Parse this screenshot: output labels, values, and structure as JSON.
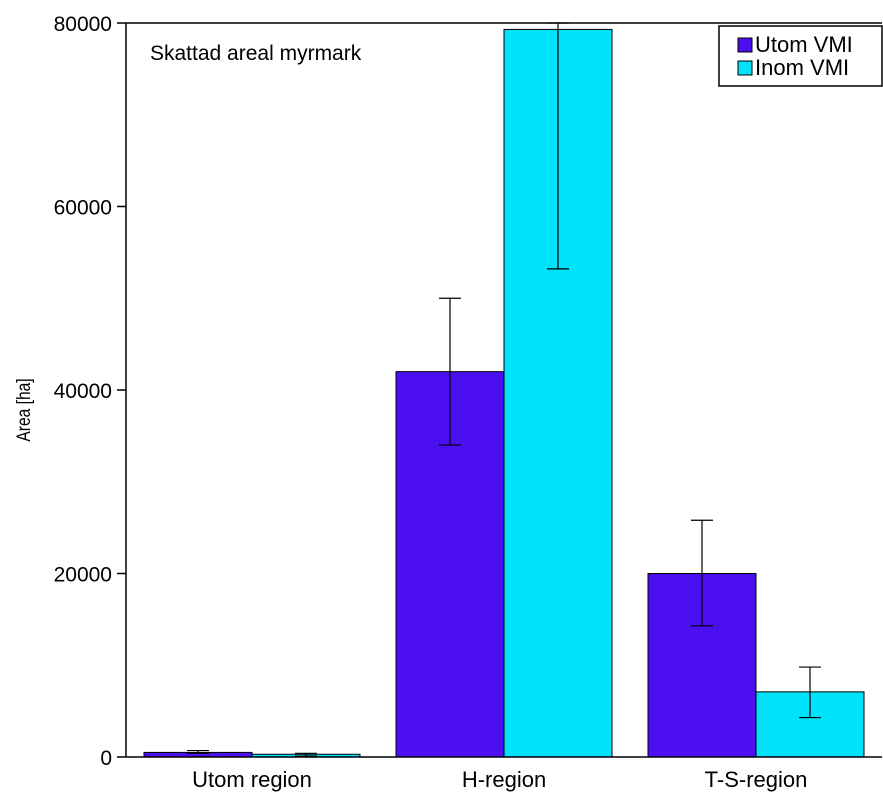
{
  "chart_data": {
    "type": "bar",
    "categories": [
      "Utom region",
      "H-region",
      "T-S-region"
    ],
    "series": [
      {
        "name": "Utom VMI",
        "color": "#4b0ff0",
        "values": [
          500,
          42000,
          20000
        ],
        "error_low": [
          400,
          34000,
          14300
        ],
        "error_high": [
          700,
          50000,
          25800
        ]
      },
      {
        "name": "Inom VMI",
        "color": "#00e1fa",
        "values": [
          300,
          79300,
          7100
        ],
        "error_low": [
          100,
          53200,
          4300
        ],
        "error_high": [
          400,
          80000,
          9800
        ]
      }
    ],
    "annotation": "Skattad areal myrmark",
    "xlabel": "",
    "ylabel": "Area [ha]",
    "ylim": [
      0,
      80000
    ],
    "yticks": [
      0,
      20000,
      40000,
      60000,
      80000
    ],
    "legend_position": "top-right",
    "grid": false
  }
}
